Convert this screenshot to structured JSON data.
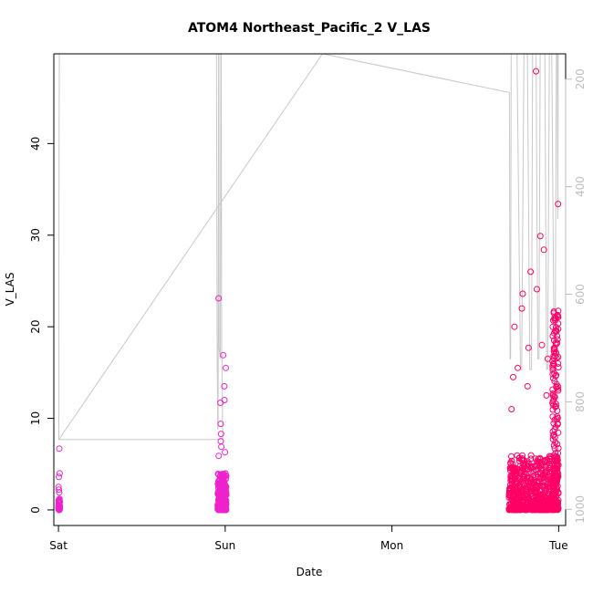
{
  "chart_data": {
    "type": "scatter",
    "title": "ATOM4 Northeast_Pacific_2 V_LAS",
    "xlabel": "Date",
    "ylabel": "V_LAS",
    "x_axis": {
      "kind": "date",
      "range": [
        "2017-02-03T23:20",
        "2017-02-07T01:00"
      ],
      "tick_labels": [
        "Sat",
        "Sun",
        "Mon",
        "Tue"
      ],
      "tick_values": [
        "2017-02-04T00:00",
        "2017-02-05T00:00",
        "2017-02-06T00:00",
        "2017-02-07T00:00"
      ]
    },
    "y_axis": {
      "ylim": [
        -1.7,
        49.8
      ],
      "ticks": [
        0,
        10,
        20,
        30,
        40
      ]
    },
    "y2_axis": {
      "reversed": true,
      "ylim": [
        1030,
        153
      ],
      "ticks": [
        200,
        400,
        600,
        800,
        1000
      ],
      "color": "#bdbdbd"
    },
    "grid": false,
    "legend": "none",
    "colors": {
      "points_low": "#ee22cc",
      "points_high": "#ff0066",
      "altitude_line": "#c8c8c8",
      "axis": "#000000"
    },
    "series": [
      {
        "kind": "points",
        "clusters": [
          {
            "start": "2017-02-04T00:00",
            "end": "2017-02-04T00:12",
            "typical_max": 1.2,
            "outliers": [
              6.7,
              4.0,
              3.6,
              2.5,
              2.2,
              1.9
            ]
          },
          {
            "start": "2017-02-04T22:55",
            "end": "2017-02-05T00:10",
            "typical_max": 4.0,
            "outliers": [
              23.1,
              16.9,
              15.5,
              13.5,
              12.0,
              11.7,
              9.4,
              8.3,
              7.5,
              6.9,
              6.3,
              5.9
            ]
          },
          {
            "start": "2017-02-06T16:50",
            "end": "2017-02-06T23:58",
            "typical_max": 6.0,
            "outliers": [
              47.9,
              33.4,
              29.9,
              28.4,
              26.0,
              24.1,
              23.6,
              22.0,
              20.0,
              18.0,
              17.7,
              16.5,
              15.5,
              14.5,
              13.5,
              12.5,
              11.0
            ]
          }
        ]
      },
      {
        "kind": "line",
        "axis": "y2",
        "points": [
          [
            "2017-02-04T00:00",
            870
          ],
          [
            "2017-02-04T00:03",
            870
          ],
          [
            "2017-02-04T00:05",
            340
          ],
          [
            "2017-02-04T00:08",
            153
          ],
          [
            "2017-02-04T22:45",
            153
          ],
          [
            "2017-02-04T22:50",
            700
          ],
          [
            "2017-02-04T22:56",
            850
          ],
          [
            "2017-02-04T22:58",
            850
          ],
          [
            "2017-02-04T23:00",
            700
          ],
          [
            "2017-02-04T23:03",
            153
          ],
          [
            "2017-02-04T23:05",
            153
          ],
          [
            "2017-02-04T23:08",
            700
          ],
          [
            "2017-02-04T23:18",
            720
          ],
          [
            "2017-02-04T23:22",
            153
          ],
          [
            "2017-02-04T23:25",
            153
          ],
          [
            "2017-02-04T23:30",
            700
          ],
          [
            "2017-02-04T23:35",
            780
          ],
          [
            "2017-02-04T23:38",
            870
          ],
          [
            "2017-02-04T23:40",
            870
          ],
          [
            "2017-02-04T23:41",
            870
          ],
          [
            "2017-02-04T00:03",
            870
          ],
          [
            "2017-02-05T14:00",
            153
          ],
          [
            "2017-02-06T16:55",
            225
          ],
          [
            "2017-02-06T17:00",
            720
          ],
          [
            "2017-02-06T17:05",
            720
          ],
          [
            "2017-02-06T17:10",
            153
          ],
          [
            "2017-02-06T18:00",
            153
          ],
          [
            "2017-02-06T18:30",
            740
          ],
          [
            "2017-02-06T18:40",
            740
          ],
          [
            "2017-02-06T19:00",
            153
          ],
          [
            "2017-02-06T19:30",
            153
          ],
          [
            "2017-02-06T19:50",
            740
          ],
          [
            "2017-02-06T20:05",
            740
          ],
          [
            "2017-02-06T20:15",
            153
          ],
          [
            "2017-02-06T20:45",
            153
          ],
          [
            "2017-02-06T21:00",
            720
          ],
          [
            "2017-02-06T21:10",
            720
          ],
          [
            "2017-02-06T21:20",
            153
          ],
          [
            "2017-02-06T22:00",
            153
          ],
          [
            "2017-02-06T22:15",
            740
          ],
          [
            "2017-02-06T22:25",
            740
          ],
          [
            "2017-02-06T22:40",
            153
          ],
          [
            "2017-02-06T23:00",
            153
          ],
          [
            "2017-02-06T23:20",
            700
          ],
          [
            "2017-02-06T23:30",
            700
          ],
          [
            "2017-02-06T23:40",
            153
          ],
          [
            "2017-02-06T23:48",
            153
          ],
          [
            "2017-02-06T23:52",
            460
          ],
          [
            "2017-02-06T23:56",
            153
          ]
        ]
      }
    ]
  }
}
